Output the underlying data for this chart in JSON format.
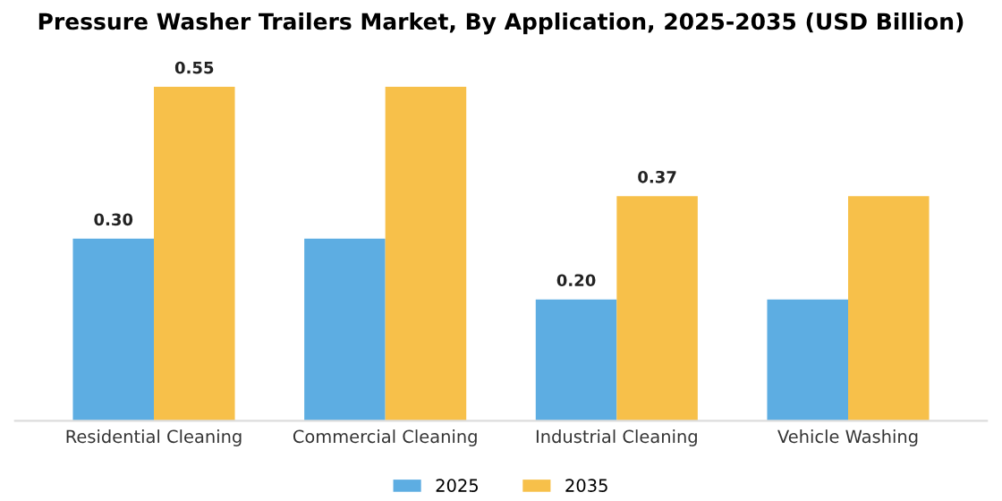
{
  "chart_data": {
    "type": "bar",
    "title": "Pressure Washer Trailers Market, By Application, 2025-2035 (USD Billion)",
    "categories": [
      "Residential Cleaning",
      "Commercial Cleaning",
      "Industrial Cleaning",
      "Vehicle Washing"
    ],
    "series": [
      {
        "name": "2025",
        "color": "#5dade2",
        "values": [
          0.3,
          0.3,
          0.2,
          0.2
        ],
        "value_labels": [
          "0.30",
          null,
          "0.20",
          null
        ]
      },
      {
        "name": "2035",
        "color": "#f7c04a",
        "values": [
          0.55,
          0.55,
          0.37,
          0.37
        ],
        "value_labels": [
          "0.55",
          null,
          "0.37",
          null
        ]
      }
    ],
    "tick_labels": "x",
    "grid": false,
    "legend": "bottom"
  }
}
